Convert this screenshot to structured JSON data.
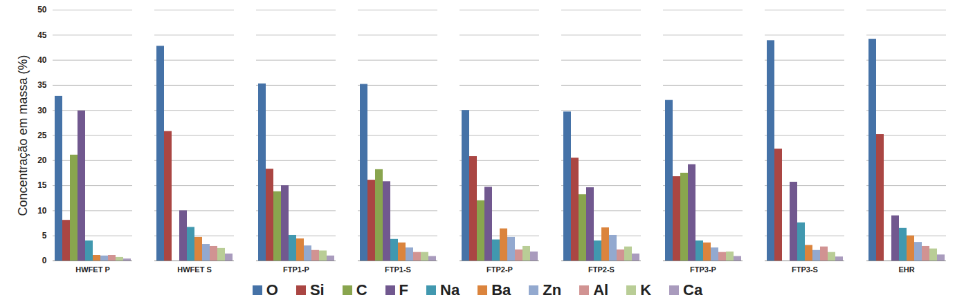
{
  "chart_data": {
    "type": "bar",
    "ylabel": "Concentração em massa (%)",
    "categories": [
      "HWFET P",
      "HWFET S",
      "FTP1-P",
      "FTP1-S",
      "FTP2-P",
      "FTP2-S",
      "FTP3-P",
      "FTP3-S",
      "EHR"
    ],
    "series": [
      {
        "name": "O",
        "color": "#4572A7",
        "values": [
          32.8,
          42.8,
          35.3,
          35.2,
          30.0,
          29.7,
          32.0,
          43.9,
          44.2
        ]
      },
      {
        "name": "Si",
        "color": "#AA4643",
        "values": [
          8.1,
          25.8,
          18.3,
          16.1,
          20.8,
          20.5,
          16.8,
          22.3,
          25.2
        ]
      },
      {
        "name": "C",
        "color": "#89A54E",
        "values": [
          21.1,
          null,
          13.8,
          18.2,
          12.0,
          13.2,
          17.5,
          null,
          null
        ]
      },
      {
        "name": "F",
        "color": "#71588F",
        "values": [
          29.9,
          10.0,
          15.0,
          15.8,
          14.7,
          14.6,
          19.2,
          15.7,
          9.0
        ]
      },
      {
        "name": "Na",
        "color": "#4198AF",
        "values": [
          4.0,
          6.7,
          5.1,
          4.3,
          4.2,
          4.0,
          4.0,
          7.6,
          6.5
        ]
      },
      {
        "name": "Ba",
        "color": "#DB843D",
        "values": [
          1.1,
          4.7,
          4.4,
          3.6,
          6.4,
          6.6,
          3.6,
          3.1,
          5.0
        ]
      },
      {
        "name": "Zn",
        "color": "#93A9CF",
        "values": [
          1.0,
          3.3,
          3.0,
          2.6,
          4.7,
          5.1,
          2.6,
          2.1,
          3.7
        ]
      },
      {
        "name": "Al",
        "color": "#D19392",
        "values": [
          1.1,
          2.9,
          2.1,
          1.7,
          2.2,
          2.2,
          1.7,
          2.8,
          2.9
        ]
      },
      {
        "name": "K",
        "color": "#B9CD96",
        "values": [
          0.7,
          2.5,
          2.0,
          1.7,
          2.9,
          2.8,
          1.8,
          1.7,
          2.4
        ]
      },
      {
        "name": "Ca",
        "color": "#A99BBD",
        "values": [
          0.4,
          1.4,
          1.0,
          0.9,
          1.8,
          1.4,
          0.9,
          0.8,
          1.2
        ]
      }
    ],
    "ylim": [
      0,
      50
    ],
    "yticks": [
      0,
      5,
      10,
      15,
      20,
      25,
      30,
      35,
      40,
      45,
      50
    ],
    "grid": true,
    "legend": "bottom"
  }
}
